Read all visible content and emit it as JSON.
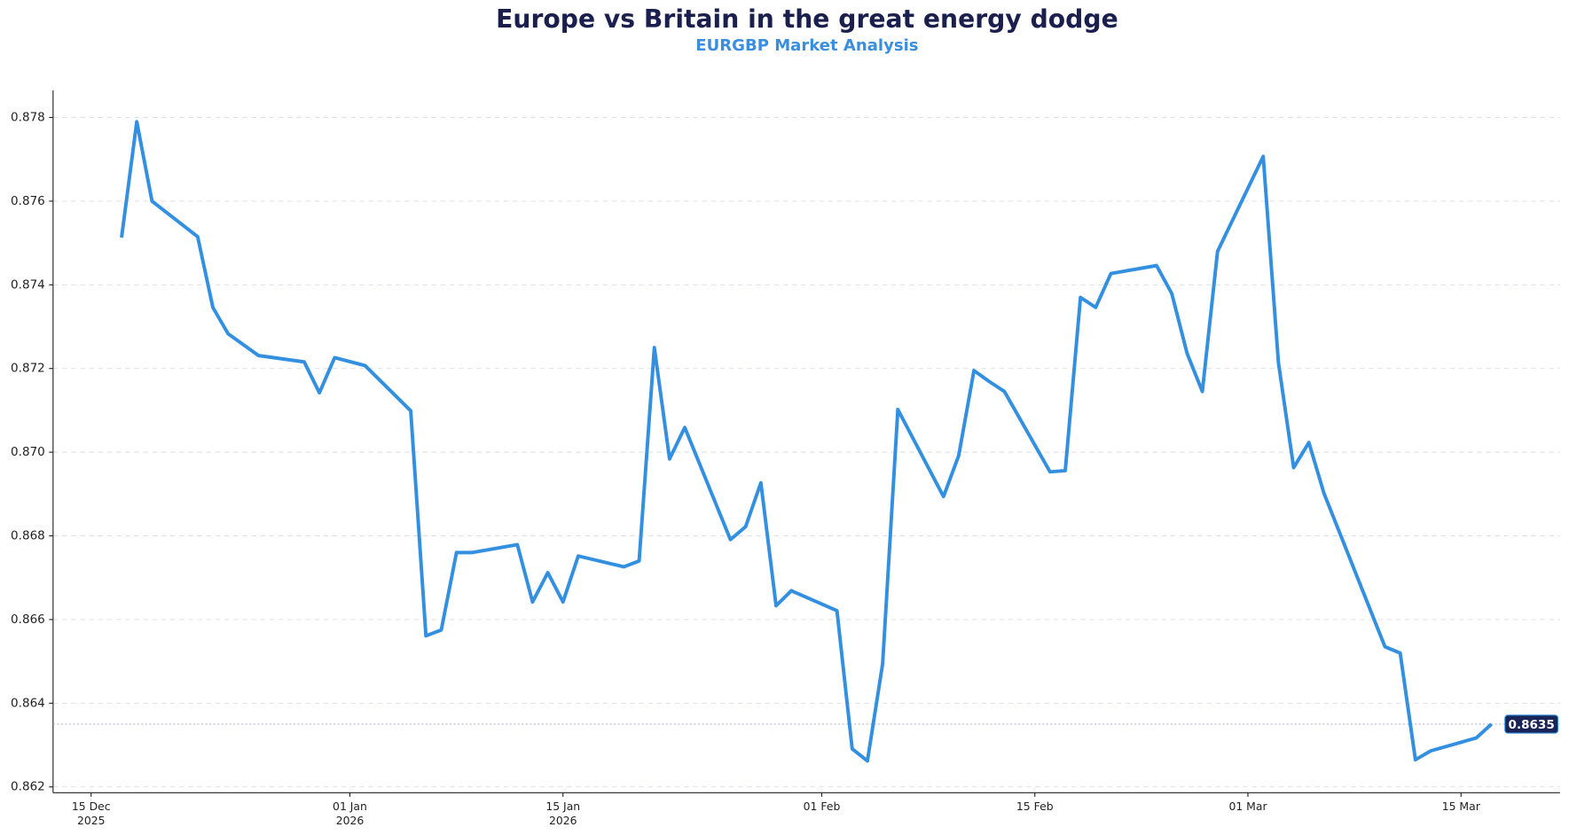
{
  "chart_data": {
    "type": "line",
    "title": "Europe vs Britain in the great energy dodge",
    "subtitle": "EURGBP Market Analysis",
    "x": [
      "2025-12-17",
      "2025-12-18",
      "2025-12-19",
      "2025-12-22",
      "2025-12-23",
      "2025-12-24",
      "2025-12-26",
      "2025-12-29",
      "2025-12-30",
      "2025-12-31",
      "2026-01-02",
      "2026-01-05",
      "2026-01-06",
      "2026-01-07",
      "2026-01-08",
      "2026-01-09",
      "2026-01-12",
      "2026-01-13",
      "2026-01-14",
      "2026-01-15",
      "2026-01-16",
      "2026-01-19",
      "2026-01-20",
      "2026-01-21",
      "2026-01-22",
      "2026-01-23",
      "2026-01-26",
      "2026-01-27",
      "2026-01-28",
      "2026-01-29",
      "2026-01-30",
      "2026-02-02",
      "2026-02-03",
      "2026-02-04",
      "2026-02-05",
      "2026-02-06",
      "2026-02-09",
      "2026-02-10",
      "2026-02-11",
      "2026-02-12",
      "2026-02-13",
      "2026-02-16",
      "2026-02-17",
      "2026-02-18",
      "2026-02-19",
      "2026-02-20",
      "2026-02-23",
      "2026-02-24",
      "2026-02-25",
      "2026-02-26",
      "2026-02-27",
      "2026-03-02",
      "2026-03-03",
      "2026-03-04",
      "2026-03-05",
      "2026-03-06",
      "2026-03-10",
      "2026-03-11",
      "2026-03-12",
      "2026-03-13",
      "2026-03-16",
      "2026-03-17"
    ],
    "series": [
      {
        "name": "EURGBP",
        "color": "#3390e0",
        "values": [
          0.87513,
          0.8779,
          0.876,
          0.87515,
          0.87346,
          0.87283,
          0.87231,
          0.87216,
          0.87142,
          0.87226,
          0.87207,
          0.87099,
          0.86561,
          0.86575,
          0.8676,
          0.8676,
          0.86779,
          0.86642,
          0.86712,
          0.86642,
          0.86752,
          0.86726,
          0.8674,
          0.8725,
          0.86984,
          0.87059,
          0.86791,
          0.86822,
          0.86927,
          0.86633,
          0.86669,
          0.86621,
          0.86291,
          0.86262,
          0.86494,
          0.87102,
          0.86894,
          0.86992,
          0.87195,
          0.87169,
          0.87145,
          0.86953,
          0.86956,
          0.8737,
          0.87346,
          0.87427,
          0.87446,
          0.87379,
          0.87236,
          0.87145,
          0.8748,
          0.87707,
          0.87214,
          0.86963,
          0.87023,
          0.86901,
          0.86535,
          0.8652,
          0.86265,
          0.86286,
          0.86317,
          0.8635
        ]
      }
    ],
    "xlim": [
      "2025-12-12T12:00:00Z",
      "2026-03-21T12:00:00Z"
    ],
    "xticks": [
      {
        "value": "2025-12-15",
        "label": "15 Dec\n2025"
      },
      {
        "value": "2026-01-01",
        "label": "01 Jan\n2026"
      },
      {
        "value": "2026-01-15",
        "label": "15 Jan\n2026"
      },
      {
        "value": "2026-02-01",
        "label": "01 Feb"
      },
      {
        "value": "2026-02-15",
        "label": "15 Feb"
      },
      {
        "value": "2026-03-01",
        "label": "01 Mar"
      },
      {
        "value": "2026-03-15",
        "label": "15 Mar"
      }
    ],
    "ylim": [
      0.86186,
      0.87865
    ],
    "yticks": [
      0.862,
      0.864,
      0.866,
      0.868,
      {
        "value": 0.87,
        "label": "0.870"
      },
      0.872,
      0.874,
      0.876,
      0.878
    ],
    "grid": true,
    "title_color": "#1a1f4d",
    "subtitle_color": "#3a8ee0"
  }
}
